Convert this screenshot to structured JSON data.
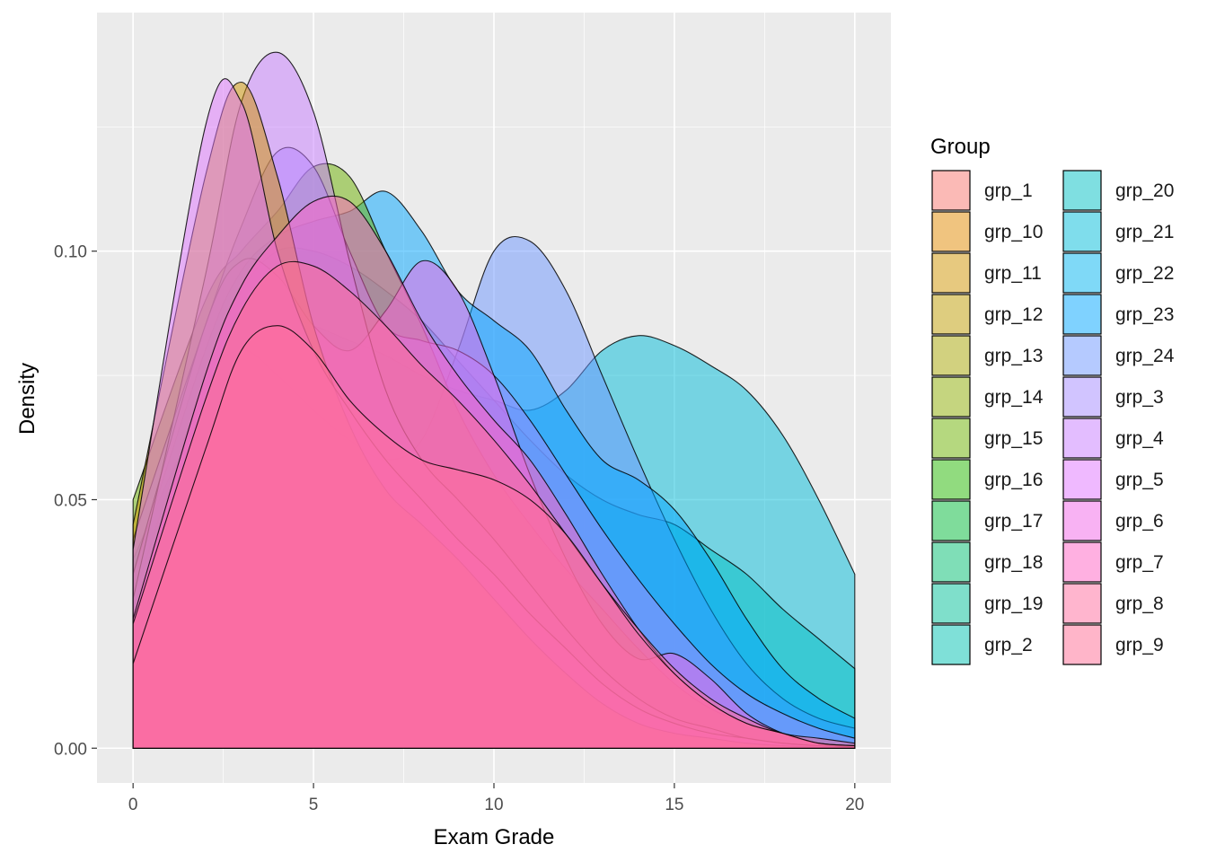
{
  "chart_data": {
    "type": "area",
    "subtype": "density",
    "title": "",
    "xlabel": "Exam Grade",
    "ylabel": "Density",
    "xlim": [
      -1,
      21
    ],
    "ylim": [
      -0.007,
      0.148
    ],
    "x_ticks": [
      0,
      5,
      10,
      15,
      20
    ],
    "x_tick_labels": [
      "0",
      "5",
      "10",
      "15",
      "20"
    ],
    "y_ticks": [
      0.0,
      0.05,
      0.1
    ],
    "y_tick_labels": [
      "0.00",
      "0.05",
      "0.10"
    ],
    "grid": true,
    "panel_background": "#ebebeb",
    "fill_opacity": 0.5,
    "outline_color": "#000000",
    "legend": {
      "title": "Group",
      "position": "right",
      "columns": 2,
      "labels": [
        "grp_1",
        "grp_10",
        "grp_11",
        "grp_12",
        "grp_13",
        "grp_14",
        "grp_15",
        "grp_16",
        "grp_17",
        "grp_18",
        "grp_19",
        "grp_2",
        "grp_20",
        "grp_21",
        "grp_22",
        "grp_23",
        "grp_24",
        "grp_3",
        "grp_4",
        "grp_5",
        "grp_6",
        "grp_7",
        "grp_8",
        "grp_9"
      ],
      "colors": [
        "#F8766D",
        "#E18A00",
        "#D09400",
        "#BE9C00",
        "#A5A300",
        "#8CAB00",
        "#6BB100",
        "#24B700",
        "#00BA38",
        "#00BE70",
        "#00C097",
        "#00C1B2",
        "#00BFC4",
        "#00BBDA",
        "#00B4EF",
        "#00A5FF",
        "#6B96FF",
        "#A38AFF",
        "#C77CFF",
        "#E073FF",
        "#F265E7",
        "#FF61C3",
        "#FF6C9E",
        "#FF6B94"
      ]
    },
    "series": [
      {
        "name": "grp_21",
        "color": "#00BBDA",
        "x": [
          0,
          2,
          3,
          4,
          5,
          6,
          7,
          8,
          9,
          10,
          11,
          12,
          13,
          14,
          15,
          16,
          17,
          18,
          19,
          20
        ],
        "values": [
          0.038,
          0.07,
          0.08,
          0.087,
          0.085,
          0.082,
          0.079,
          0.075,
          0.072,
          0.07,
          0.068,
          0.072,
          0.08,
          0.083,
          0.081,
          0.077,
          0.072,
          0.063,
          0.05,
          0.035
        ]
      },
      {
        "name": "grp_20",
        "color": "#00BFC4",
        "x": [
          0,
          2,
          3,
          4,
          5,
          6,
          7,
          8,
          9,
          10,
          11,
          12,
          13,
          14,
          15,
          16,
          17,
          18,
          19,
          20
        ],
        "values": [
          0.03,
          0.075,
          0.092,
          0.1,
          0.1,
          0.097,
          0.092,
          0.086,
          0.078,
          0.07,
          0.062,
          0.055,
          0.05,
          0.047,
          0.045,
          0.04,
          0.035,
          0.028,
          0.022,
          0.016
        ]
      },
      {
        "name": "grp_24",
        "color": "#6B96FF",
        "x": [
          0,
          2,
          3,
          4,
          5,
          6,
          7,
          8,
          9,
          10,
          11,
          12,
          13,
          14,
          15,
          16,
          17,
          18,
          19,
          20
        ],
        "values": [
          0.03,
          0.072,
          0.08,
          0.075,
          0.068,
          0.062,
          0.058,
          0.062,
          0.08,
          0.1,
          0.102,
          0.092,
          0.075,
          0.058,
          0.042,
          0.028,
          0.017,
          0.01,
          0.006,
          0.004
        ]
      },
      {
        "name": "grp_23",
        "color": "#00A5FF",
        "x": [
          0,
          2,
          3,
          4,
          5,
          6,
          7,
          8,
          9,
          10,
          11,
          12,
          13,
          14,
          15,
          16,
          17,
          18,
          19,
          20
        ],
        "values": [
          0.035,
          0.08,
          0.096,
          0.103,
          0.106,
          0.108,
          0.112,
          0.104,
          0.092,
          0.086,
          0.08,
          0.068,
          0.058,
          0.054,
          0.048,
          0.038,
          0.026,
          0.016,
          0.01,
          0.006
        ]
      },
      {
        "name": "grp_15",
        "color": "#6BB100",
        "x": [
          0,
          2,
          3,
          4,
          5,
          6,
          7,
          8,
          9,
          10,
          11,
          12,
          13,
          14,
          15,
          16,
          17,
          18,
          19,
          20
        ],
        "values": [
          0.05,
          0.09,
          0.1,
          0.108,
          0.117,
          0.115,
          0.1,
          0.085,
          0.068,
          0.055,
          0.045,
          0.036,
          0.028,
          0.02,
          0.013,
          0.008,
          0.005,
          0.003,
          0.001,
          0.0005
        ]
      },
      {
        "name": "grp_3",
        "color": "#A38AFF",
        "x": [
          0,
          2,
          3,
          4,
          5,
          6,
          7,
          8,
          9,
          10,
          11,
          12,
          13,
          14,
          15,
          16,
          17,
          18,
          19,
          20
        ],
        "values": [
          0.042,
          0.085,
          0.105,
          0.12,
          0.117,
          0.1,
          0.085,
          0.082,
          0.08,
          0.075,
          0.066,
          0.055,
          0.044,
          0.034,
          0.025,
          0.017,
          0.011,
          0.007,
          0.004,
          0.002
        ]
      },
      {
        "name": "grp_6",
        "color": "#F265E7",
        "x": [
          0,
          2,
          3,
          4,
          5,
          6,
          7,
          8,
          9,
          10,
          11,
          12,
          13,
          14,
          15,
          16,
          17,
          18,
          19,
          20
        ],
        "values": [
          0.035,
          0.085,
          0.098,
          0.095,
          0.085,
          0.08,
          0.088,
          0.098,
          0.092,
          0.075,
          0.055,
          0.038,
          0.025,
          0.018,
          0.019,
          0.014,
          0.007,
          0.003,
          0.001,
          0.0005
        ]
      },
      {
        "name": "grp_4",
        "color": "#C77CFF",
        "x": [
          0,
          2,
          3,
          4,
          5,
          6,
          7,
          8,
          9,
          10,
          11,
          12,
          13,
          14,
          15,
          16,
          17,
          18,
          19,
          20
        ],
        "values": [
          0.03,
          0.095,
          0.13,
          0.14,
          0.128,
          0.098,
          0.072,
          0.058,
          0.05,
          0.042,
          0.033,
          0.024,
          0.016,
          0.01,
          0.006,
          0.004,
          0.002,
          0.001,
          0.0005,
          0.0002
        ]
      },
      {
        "name": "grp_11",
        "color": "#D09400",
        "x": [
          0,
          2,
          3,
          4,
          5,
          6,
          7,
          8,
          9,
          10,
          11,
          12,
          13,
          14,
          15,
          16,
          17,
          18,
          19,
          20
        ],
        "values": [
          0.045,
          0.115,
          0.134,
          0.115,
          0.085,
          0.065,
          0.052,
          0.045,
          0.038,
          0.03,
          0.022,
          0.015,
          0.009,
          0.005,
          0.003,
          0.002,
          0.001,
          0.0005,
          0.0002,
          0.0001
        ]
      },
      {
        "name": "grp_5",
        "color": "#E073FF",
        "x": [
          0,
          2,
          3,
          4,
          5,
          6,
          7,
          8,
          9,
          10,
          11,
          12,
          13,
          14,
          15,
          16,
          17,
          18,
          19,
          20
        ],
        "values": [
          0.04,
          0.125,
          0.13,
          0.1,
          0.08,
          0.068,
          0.058,
          0.05,
          0.042,
          0.035,
          0.027,
          0.02,
          0.013,
          0.008,
          0.005,
          0.003,
          0.002,
          0.001,
          0.0005,
          0.0002
        ]
      },
      {
        "name": "grp_7",
        "color": "#FF61C3",
        "x": [
          0,
          2,
          3,
          4,
          5,
          6,
          7,
          8,
          9,
          10,
          11,
          12,
          13,
          14,
          15,
          16,
          17,
          18,
          19,
          20
        ],
        "values": [
          0.026,
          0.075,
          0.093,
          0.103,
          0.11,
          0.11,
          0.1,
          0.086,
          0.075,
          0.066,
          0.058,
          0.047,
          0.035,
          0.024,
          0.015,
          0.009,
          0.005,
          0.003,
          0.001,
          0.0005
        ]
      },
      {
        "name": "grp_9",
        "color": "#FF6B94",
        "x": [
          0,
          2,
          3,
          4,
          5,
          6,
          7,
          8,
          9,
          10,
          11,
          12,
          13,
          14,
          15,
          16,
          17,
          18,
          19,
          20
        ],
        "values": [
          0.025,
          0.07,
          0.088,
          0.097,
          0.097,
          0.092,
          0.085,
          0.077,
          0.07,
          0.062,
          0.053,
          0.043,
          0.033,
          0.024,
          0.016,
          0.01,
          0.006,
          0.003,
          0.002,
          0.001
        ]
      },
      {
        "name": "grp_8",
        "color": "#FF6C9E",
        "x": [
          0,
          2,
          3,
          4,
          5,
          6,
          7,
          8,
          9,
          10,
          11,
          12,
          13,
          14,
          15,
          16,
          17,
          18,
          19,
          20
        ],
        "values": [
          0.017,
          0.06,
          0.08,
          0.085,
          0.08,
          0.07,
          0.063,
          0.058,
          0.056,
          0.054,
          0.05,
          0.043,
          0.033,
          0.023,
          0.015,
          0.009,
          0.005,
          0.003,
          0.001,
          0.0005
        ]
      }
    ]
  }
}
